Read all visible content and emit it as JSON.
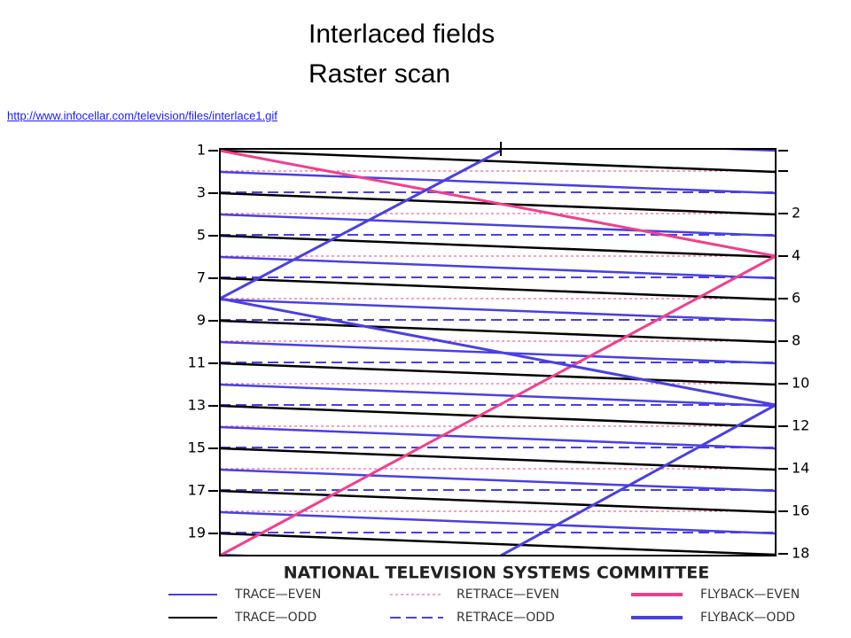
{
  "header": {
    "title_lines": [
      "Interlaced fields",
      "Raster scan"
    ],
    "link": "http://www.infocellar.com/television/files/interlace1.gif"
  },
  "diagram": {
    "left_labels": [
      "1",
      "3",
      "5",
      "7",
      "9",
      "11",
      "13",
      "15",
      "17",
      "19"
    ],
    "right_labels": [
      "-",
      "-",
      "2",
      "4",
      "6",
      "8",
      "10",
      "12",
      "14",
      "16",
      "18"
    ],
    "caption": "NATIONAL TELEVISION SYSTEMS COMMITTEE",
    "legend": [
      "TRACE—EVEN",
      "RETRACE—EVEN",
      "FLYBACK—EVEN",
      "TRACE—ODD",
      "RETRACE—ODD",
      "FLYBACK—ODD"
    ]
  }
}
